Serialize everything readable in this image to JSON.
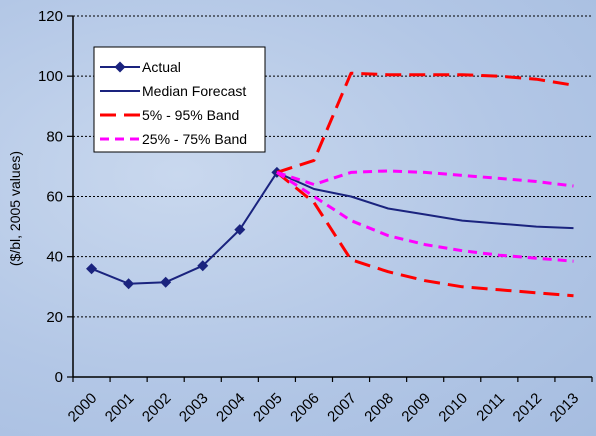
{
  "chart_data": {
    "type": "line",
    "ylabel": "($/bl, 2005 values)",
    "xlabel": "",
    "ylim": [
      0,
      120
    ],
    "yticks": [
      0,
      20,
      40,
      60,
      80,
      100,
      120
    ],
    "categories": [
      "2000",
      "2001",
      "2002",
      "2003",
      "2004",
      "2005",
      "2006",
      "2007",
      "2008",
      "2009",
      "2010",
      "2011",
      "2012",
      "2013"
    ],
    "grid": "horizontal dotted",
    "legend_position": "top-left inside plot",
    "series": [
      {
        "name": "Actual",
        "style": "solid-diamond",
        "color": "#1a237e",
        "x": [
          0,
          1,
          2,
          3,
          4,
          5
        ],
        "values": [
          36,
          31,
          31.5,
          37,
          49,
          68
        ]
      },
      {
        "name": "Median Forecast",
        "style": "solid",
        "color": "#1a237e",
        "x": [
          5,
          6,
          7,
          8,
          9,
          10,
          11,
          12,
          13
        ],
        "values": [
          68,
          62.5,
          60,
          56,
          54,
          52,
          51,
          50,
          49.5
        ]
      },
      {
        "name": "5% - 95% Band",
        "style": "dashed-long",
        "color": "#ff0000",
        "x": [
          5,
          6,
          7,
          8,
          9,
          10,
          11,
          12,
          13
        ],
        "values": [
          68,
          72,
          101,
          100.5,
          100.5,
          100.5,
          100,
          99,
          97
        ]
      },
      {
        "name": "",
        "style": "dashed-long",
        "color": "#ff0000",
        "x": [
          5,
          6,
          7,
          8,
          9,
          10,
          11,
          12,
          13
        ],
        "values": [
          68,
          58,
          39,
          35,
          32,
          30,
          29,
          28,
          27
        ]
      },
      {
        "name": "25% - 75% Band",
        "style": "dashed-short",
        "color": "#ff00ff",
        "x": [
          5,
          6,
          7,
          8,
          9,
          10,
          11,
          12,
          13
        ],
        "values": [
          68,
          64,
          68,
          68.5,
          68,
          67,
          66,
          65,
          63.5
        ]
      },
      {
        "name": "",
        "style": "dashed-short",
        "color": "#ff00ff",
        "x": [
          5,
          6,
          7,
          8,
          9,
          10,
          11,
          12,
          13
        ],
        "values": [
          68,
          60,
          52,
          47,
          44,
          42,
          40.5,
          39.5,
          38.5
        ]
      }
    ],
    "legend": [
      "Actual",
      "Median Forecast",
      "5% - 95% Band",
      "25% - 75% Band"
    ]
  }
}
